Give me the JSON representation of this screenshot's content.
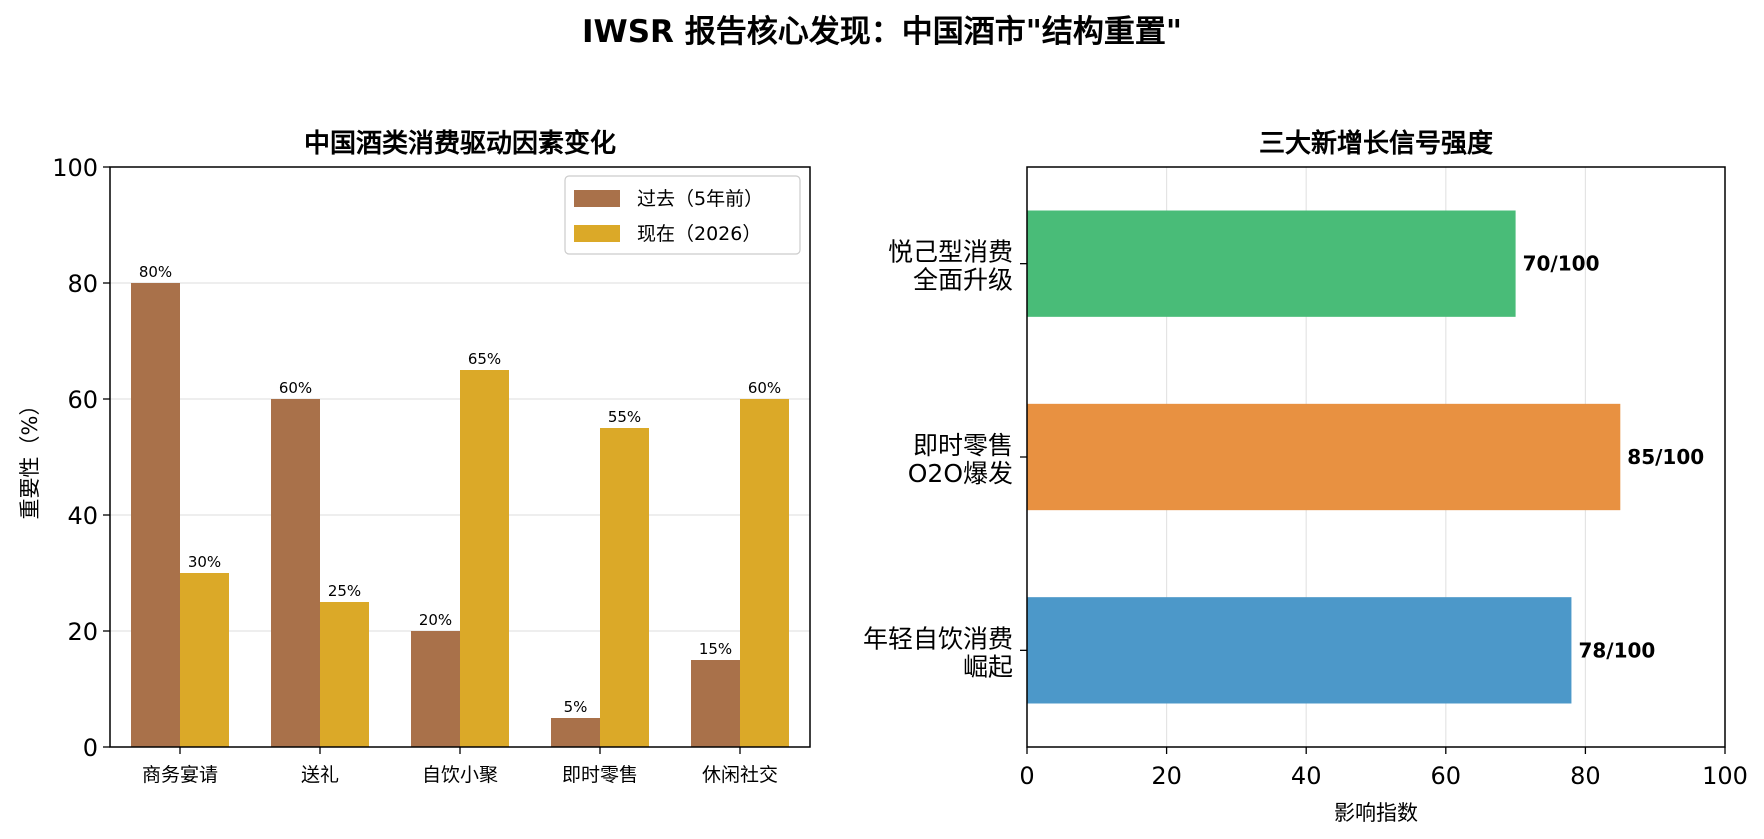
{
  "figure_title": "IWSR 报告核心发现：中国酒市\"结构重置\"",
  "chart_data": [
    {
      "type": "bar",
      "title": "中国酒类消费驱动因素变化",
      "xlabel": "",
      "ylabel": "重要性（%）",
      "ylim": [
        0,
        100
      ],
      "yticks": [
        0,
        20,
        40,
        60,
        80,
        100
      ],
      "categories": [
        "商务宴请",
        "送礼",
        "自饮小聚",
        "即时零售",
        "休闲社交"
      ],
      "series": [
        {
          "name": "过去（5年前）",
          "color": "#a9714a",
          "values": [
            80,
            60,
            20,
            5,
            15
          ],
          "labels": [
            "80%",
            "60%",
            "20%",
            "5%",
            "15%"
          ]
        },
        {
          "name": "现在（2026）",
          "color": "#dba928",
          "values": [
            30,
            25,
            65,
            55,
            60
          ],
          "labels": [
            "30%",
            "25%",
            "65%",
            "55%",
            "60%"
          ]
        }
      ],
      "grid": "y",
      "legend": "top-right"
    },
    {
      "type": "bar",
      "orientation": "horizontal",
      "title": "三大新增长信号强度",
      "xlabel": "影响指数",
      "ylabel": "",
      "xlim": [
        0,
        100
      ],
      "xticks": [
        0,
        20,
        40,
        60,
        80,
        100
      ],
      "categories": [
        {
          "line1": "年轻自饮消费",
          "line2": "崛起"
        },
        {
          "line1": "即时零售",
          "line2": "O2O爆发"
        },
        {
          "line1": "悦己型消费",
          "line2": "全面升级"
        }
      ],
      "values": [
        78,
        85,
        70
      ],
      "labels": [
        "78/100",
        "85/100",
        "70/100"
      ],
      "colors": [
        "#4c98c9",
        "#e89141",
        "#49bc78"
      ],
      "grid": "x"
    }
  ]
}
